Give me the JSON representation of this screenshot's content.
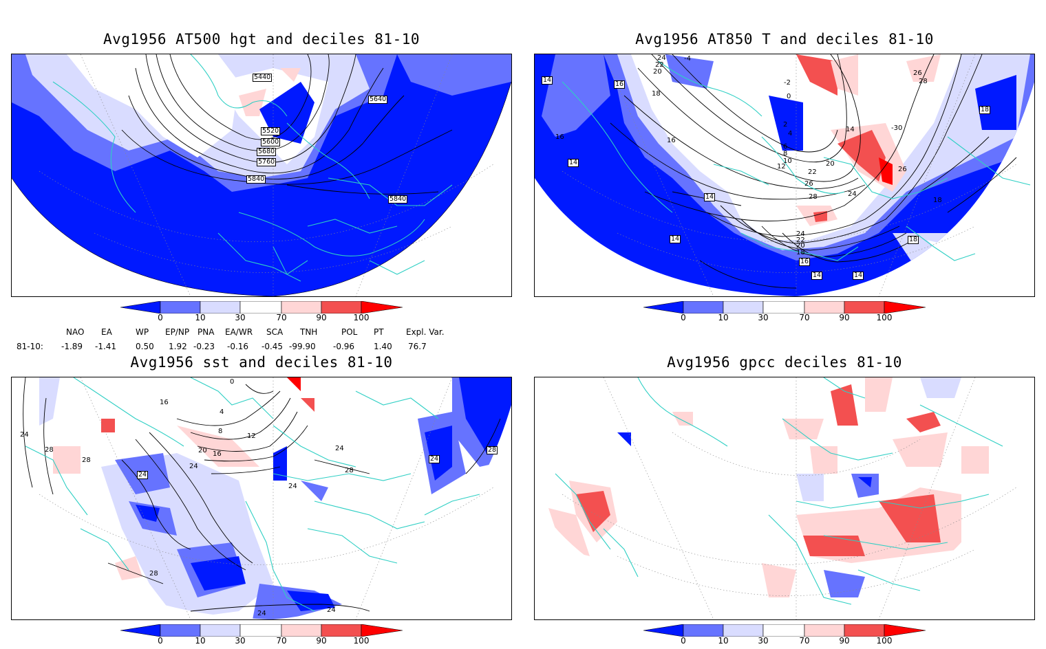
{
  "panels": [
    {
      "id": "at500",
      "title": "Avg1956 AT500 hgt and deciles 81-10",
      "contour_labels": [
        "5440",
        "5640",
        "5520",
        "5600",
        "5680",
        "5760",
        "5840",
        "5840"
      ]
    },
    {
      "id": "at850",
      "title": "Avg1956 AT850 T and deciles 81-10",
      "contour_labels": [
        "-4",
        "24",
        "22",
        "20",
        "18",
        "-2",
        "0",
        "2",
        "4",
        "6",
        "8",
        "10",
        "12",
        "26",
        "28",
        "16",
        "14",
        "16",
        "16",
        "14",
        "-30",
        "14",
        "20",
        "22",
        "26",
        "24",
        "28",
        "26",
        "18",
        "24",
        "22",
        "20",
        "18",
        "16",
        "14",
        "14",
        "14",
        "18",
        "18",
        "14"
      ]
    },
    {
      "id": "sst",
      "title": "Avg1956 sst and deciles 81-10",
      "contour_labels": [
        "0",
        "16",
        "4",
        "8",
        "12",
        "20",
        "16",
        "24",
        "28",
        "28",
        "24",
        "24",
        "28",
        "24",
        "28",
        "24",
        "24",
        "28",
        "24",
        "24"
      ]
    },
    {
      "id": "gpcc",
      "title": "Avg1956 gpcc deciles 81-10",
      "contour_labels": []
    }
  ],
  "colorbar": {
    "labels": [
      "0",
      "10",
      "30",
      "70",
      "90",
      "100"
    ],
    "colors": [
      "#0019ff",
      "#6673ff",
      "#d9dcff",
      "#ffffff",
      "#ffd6d6",
      "#f35050",
      "#ff0000"
    ]
  },
  "indices": {
    "headers": [
      "NAO",
      "EA",
      "WP",
      "EP/NP",
      "PNA",
      "EA/WR",
      "SCA",
      "TNH",
      "POL",
      "PT",
      "Expl. Var."
    ],
    "row_label": "81-10:",
    "values": [
      "-1.89",
      "-1.41",
      "0.50",
      "1.92",
      "-0.23",
      "-0.16",
      "-0.45",
      "-99.90",
      "-0.96",
      "1.40",
      "76.7"
    ]
  }
}
